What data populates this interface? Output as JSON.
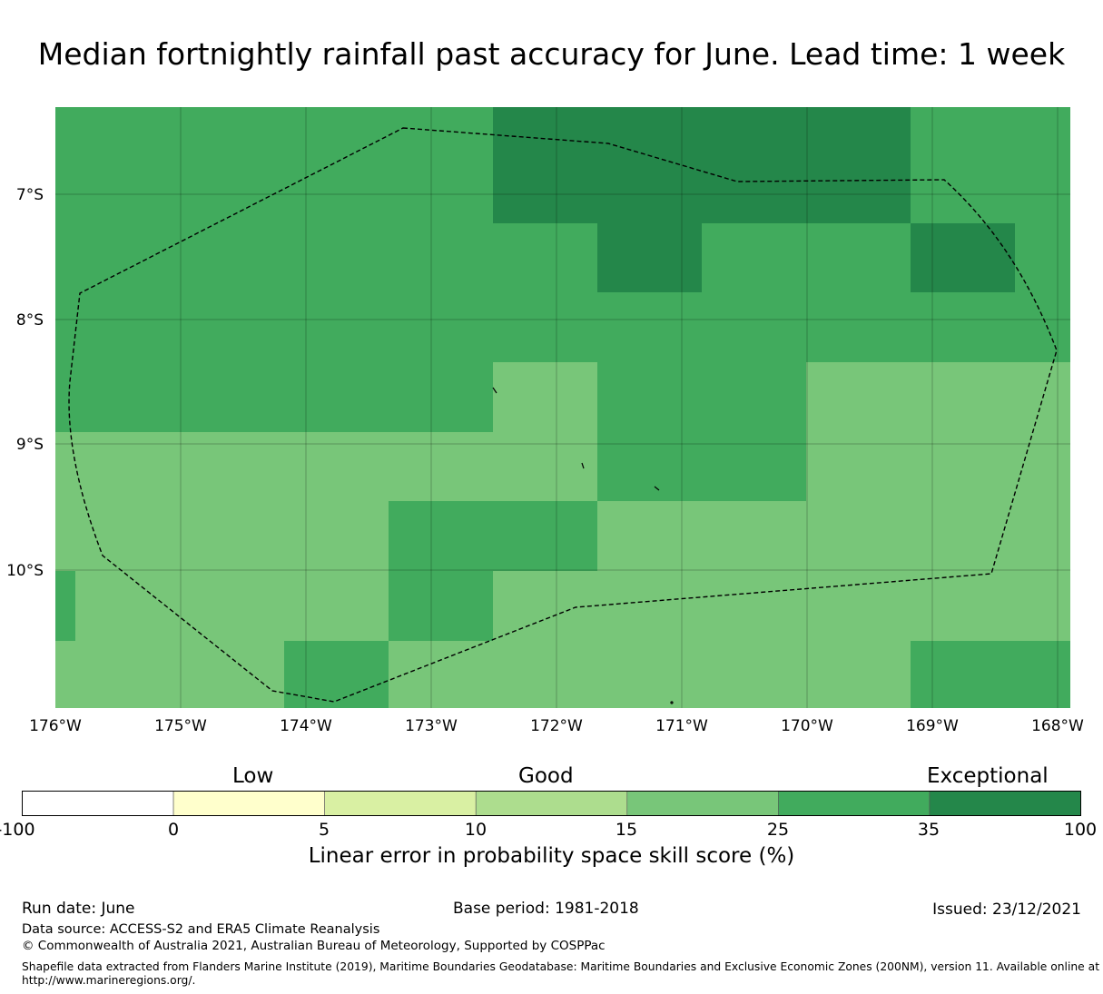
{
  "title": "Median fortnightly rainfall past accuracy for June. Lead time: 1 week",
  "map": {
    "lat_labels": [
      "7°S",
      "8°S",
      "9°S",
      "10°S"
    ],
    "lon_labels": [
      "176°W",
      "175°W",
      "174°W",
      "173°W",
      "172°W",
      "171°W",
      "170°W",
      "169°W",
      "168°W"
    ],
    "cell_colors": {
      "exceptional": "#24874a",
      "very_good": "#41ab5d",
      "good": "#78c679"
    },
    "boundary_style": "dashed black line"
  },
  "colorbar": {
    "categories": [
      "Low",
      "Good",
      "Exceptional"
    ],
    "tick_labels": [
      "-100",
      "0",
      "5",
      "10",
      "15",
      "25",
      "35",
      "100"
    ],
    "colors": [
      "#ffffff",
      "#ffffcc",
      "#d9f0a3",
      "#addd8e",
      "#78c679",
      "#41ab5d",
      "#24874a"
    ],
    "title": "Linear error in probability space skill score (%)"
  },
  "footer": {
    "run_date": "Run date: June",
    "base_period": "Base period: 1981-2018",
    "issued": "Issued: 23/12/2021",
    "data_source": "Data source: ACCESS-S2 and ERA5 Climate Reanalysis",
    "copyright": "© Commonwealth of Australia 2021, Australian Bureau of Meteorology, Supported by COSPPac",
    "shapefile_line1": "Shapefile data extracted from Flanders Marine Institute (2019), Maritime Boundaries Geodatabase: Maritime Boundaries and Exclusive Economic Zones (200NM), version 11. Available online at",
    "shapefile_line2": "http://www.marineregions.org/."
  }
}
